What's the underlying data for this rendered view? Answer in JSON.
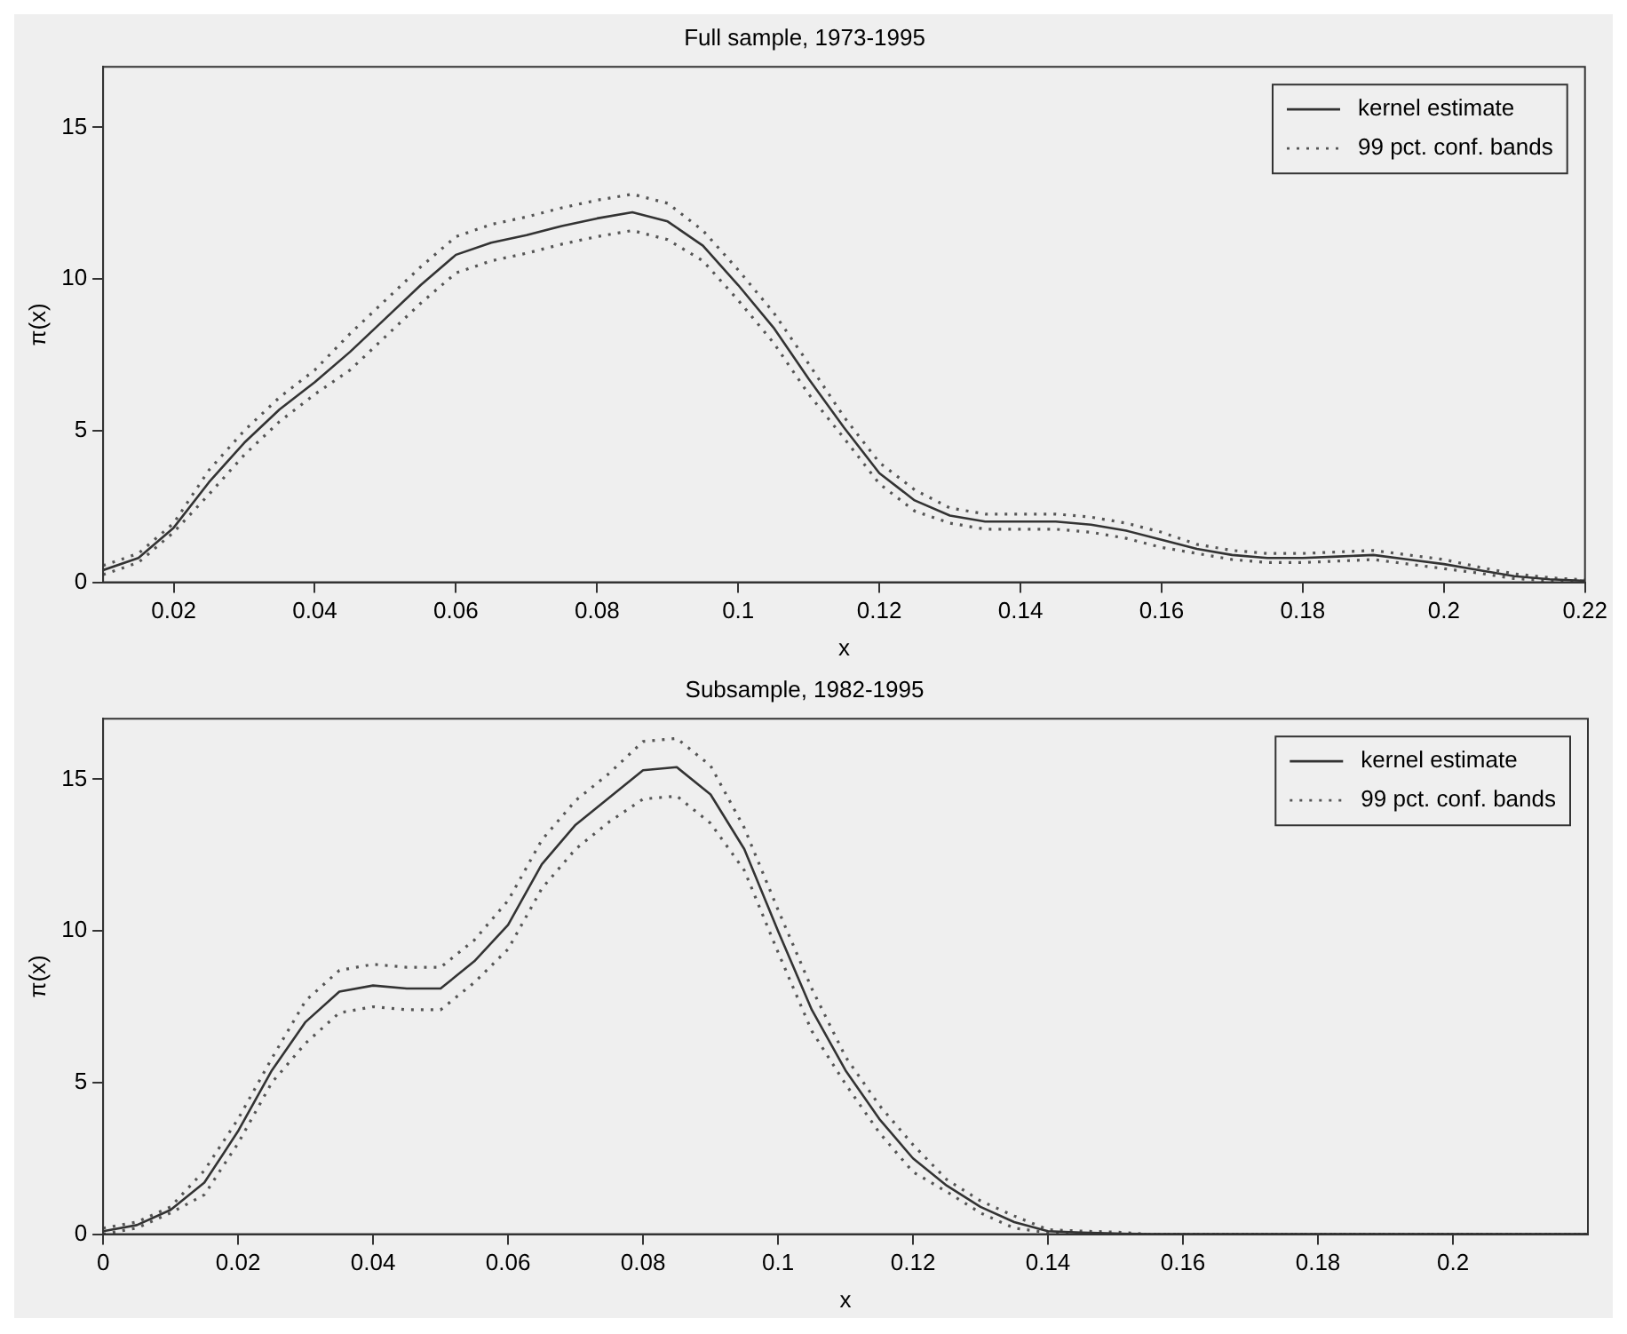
{
  "chart_data": [
    {
      "type": "line",
      "title": "Full sample, 1973-1995",
      "xlabel": "x",
      "ylabel": "π(x)",
      "xlim": [
        0.01,
        0.22
      ],
      "ylim": [
        0,
        17
      ],
      "xticks": [
        0.02,
        0.04,
        0.06,
        0.08,
        0.1,
        0.12,
        0.14,
        0.16,
        0.18,
        0.2,
        0.22
      ],
      "yticks": [
        0,
        5,
        10,
        15
      ],
      "grid": false,
      "legend": "top right",
      "x": [
        0.01,
        0.015,
        0.02,
        0.025,
        0.03,
        0.035,
        0.04,
        0.045,
        0.05,
        0.055,
        0.06,
        0.065,
        0.07,
        0.075,
        0.08,
        0.085,
        0.09,
        0.095,
        0.1,
        0.105,
        0.11,
        0.115,
        0.12,
        0.125,
        0.13,
        0.135,
        0.14,
        0.145,
        0.15,
        0.155,
        0.16,
        0.165,
        0.17,
        0.175,
        0.18,
        0.185,
        0.19,
        0.195,
        0.2,
        0.205,
        0.21,
        0.215,
        0.22
      ],
      "series": [
        {
          "name": "kernel estimate",
          "color": "#333333",
          "line_style": "solid",
          "values": [
            0.4,
            0.8,
            1.8,
            3.3,
            4.6,
            5.7,
            6.6,
            7.6,
            8.7,
            9.8,
            10.8,
            11.2,
            11.45,
            11.75,
            12.0,
            12.2,
            11.9,
            11.1,
            9.8,
            8.4,
            6.7,
            5.1,
            3.6,
            2.7,
            2.2,
            2.0,
            2.0,
            2.0,
            1.9,
            1.7,
            1.4,
            1.1,
            0.9,
            0.8,
            0.8,
            0.85,
            0.9,
            0.75,
            0.6,
            0.4,
            0.2,
            0.1,
            0.05
          ]
        },
        {
          "name": "99 pct. conf. bands",
          "color": "#555555",
          "line_style": "dotted",
          "values": [
            0.55,
            0.95,
            1.95,
            3.7,
            5.0,
            6.1,
            7.0,
            8.2,
            9.3,
            10.4,
            11.4,
            11.8,
            12.05,
            12.35,
            12.6,
            12.8,
            12.5,
            11.6,
            10.3,
            8.9,
            7.2,
            5.45,
            3.95,
            3.05,
            2.45,
            2.25,
            2.25,
            2.25,
            2.15,
            1.95,
            1.65,
            1.25,
            1.05,
            0.95,
            0.95,
            1.0,
            1.05,
            0.9,
            0.75,
            0.5,
            0.28,
            0.15,
            0.08
          ]
        },
        {
          "color": "#555555",
          "line_style": "dotted",
          "values": [
            0.25,
            0.65,
            1.65,
            2.9,
            4.2,
            5.3,
            6.2,
            7.0,
            8.1,
            9.2,
            10.2,
            10.6,
            10.85,
            11.15,
            11.4,
            11.6,
            11.3,
            10.6,
            9.3,
            7.9,
            6.2,
            4.75,
            3.25,
            2.35,
            1.95,
            1.75,
            1.75,
            1.75,
            1.65,
            1.45,
            1.15,
            0.95,
            0.75,
            0.65,
            0.65,
            0.7,
            0.75,
            0.6,
            0.45,
            0.3,
            0.12,
            0.05,
            0.02
          ]
        }
      ]
    },
    {
      "type": "line",
      "title": "Subsample, 1982-1995",
      "xlabel": "x",
      "ylabel": "π(x)",
      "xlim": [
        0,
        0.22
      ],
      "ylim": [
        0,
        17
      ],
      "xticks": [
        0,
        0.02,
        0.04,
        0.06,
        0.08,
        0.1,
        0.12,
        0.14,
        0.16,
        0.18,
        0.2
      ],
      "yticks": [
        0,
        5,
        10,
        15
      ],
      "grid": false,
      "legend": "top right",
      "x": [
        0,
        0.005,
        0.01,
        0.015,
        0.02,
        0.025,
        0.03,
        0.035,
        0.04,
        0.045,
        0.05,
        0.055,
        0.06,
        0.065,
        0.07,
        0.075,
        0.08,
        0.085,
        0.09,
        0.095,
        0.1,
        0.105,
        0.11,
        0.115,
        0.12,
        0.125,
        0.13,
        0.135,
        0.14,
        0.145,
        0.15,
        0.155,
        0.16,
        0.165,
        0.17,
        0.175,
        0.18,
        0.185,
        0.19,
        0.195,
        0.2,
        0.205,
        0.21,
        0.215,
        0.22
      ],
      "series": [
        {
          "name": "kernel estimate",
          "color": "#333333",
          "line_style": "solid",
          "values": [
            0.1,
            0.3,
            0.8,
            1.7,
            3.4,
            5.4,
            7.0,
            8.0,
            8.2,
            8.1,
            8.1,
            9.0,
            10.2,
            12.2,
            13.5,
            14.4,
            15.3,
            15.4,
            14.5,
            12.7,
            10.0,
            7.4,
            5.4,
            3.8,
            2.5,
            1.6,
            0.9,
            0.4,
            0.1,
            0.05,
            0.02,
            0,
            0,
            0,
            0,
            0,
            0,
            0,
            0,
            0,
            0,
            0,
            0,
            0,
            0
          ]
        },
        {
          "name": "99 pct. conf. bands",
          "color": "#555555",
          "line_style": "dotted",
          "values": [
            0.2,
            0.4,
            0.9,
            2.1,
            3.8,
            5.8,
            7.7,
            8.7,
            8.9,
            8.8,
            8.8,
            9.7,
            11.0,
            13.0,
            14.3,
            15.2,
            16.25,
            16.35,
            15.45,
            13.4,
            10.7,
            8.1,
            5.85,
            4.25,
            2.95,
            1.8,
            1.1,
            0.6,
            0.15,
            0.1,
            0.07,
            0,
            0,
            0,
            0,
            0,
            0,
            0,
            0,
            0,
            0,
            0,
            0,
            0,
            0
          ]
        },
        {
          "color": "#555555",
          "line_style": "dotted",
          "values": [
            0,
            0.2,
            0.7,
            1.3,
            3.0,
            5.0,
            6.3,
            7.3,
            7.5,
            7.4,
            7.4,
            8.3,
            9.4,
            11.4,
            12.7,
            13.6,
            14.35,
            14.45,
            13.55,
            12.0,
            9.3,
            6.7,
            4.95,
            3.35,
            2.05,
            1.4,
            0.7,
            0.2,
            0.05,
            0,
            0,
            0,
            0,
            0,
            0,
            0,
            0,
            0,
            0,
            0,
            0,
            0,
            0,
            0,
            0
          ]
        }
      ]
    }
  ]
}
